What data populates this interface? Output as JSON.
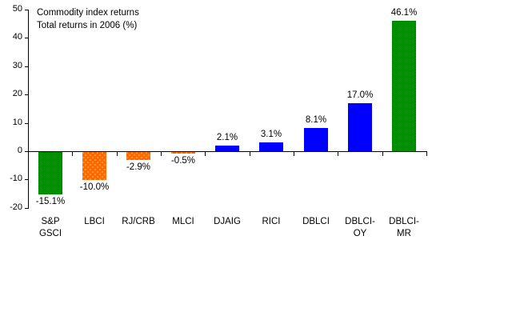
{
  "window": {
    "background": "#ffffff"
  },
  "chart_data": {
    "type": "bar",
    "title": "Commodity index returns",
    "subtitle": "Total returns in 2006 (%)",
    "categories": [
      "S&P\nGSCI",
      "LBCI",
      "RJ/CRB",
      "MLCI",
      "DJAIG",
      "RICI",
      "DBLCI",
      "DBLCI-\nOY",
      "DBLCI-\nMR"
    ],
    "values": [
      -15.1,
      -10.0,
      -2.9,
      -0.5,
      2.1,
      3.1,
      8.1,
      17.0,
      46.1
    ],
    "data_labels": [
      "-15.1%",
      "-10.0%",
      "-2.9%",
      "-0.5%",
      "2.1%",
      "3.1%",
      "8.1%",
      "17.0%",
      "46.1%"
    ],
    "bar_styles": [
      "green",
      "orange",
      "orange",
      "orange",
      "blue",
      "blue",
      "blue",
      "blue",
      "green"
    ],
    "colors": {
      "green": "#008000",
      "green_dark": "#005c00",
      "green_light": "#00a400",
      "orange": "#ff6600",
      "orange_dot": "#ff9933",
      "blue": "#0000ff",
      "axis": "#000000",
      "text": "#000000"
    },
    "ylim": [
      -20,
      50
    ],
    "yticks": [
      50,
      40,
      30,
      20,
      10,
      0,
      -10,
      -20
    ],
    "grid": false,
    "legend": null
  }
}
